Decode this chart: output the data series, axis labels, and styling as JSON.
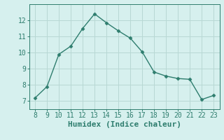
{
  "x": [
    8,
    9,
    10,
    11,
    12,
    13,
    14,
    15,
    16,
    17,
    18,
    19,
    20,
    21,
    22,
    23
  ],
  "y": [
    7.2,
    7.9,
    9.9,
    10.4,
    11.5,
    12.4,
    11.85,
    11.35,
    10.9,
    10.05,
    8.8,
    8.55,
    8.4,
    8.35,
    7.1,
    7.35
  ],
  "xlabel": "Humidex (Indice chaleur)",
  "xlim": [
    7.5,
    23.5
  ],
  "ylim": [
    6.5,
    13.0
  ],
  "xticks": [
    8,
    9,
    10,
    11,
    12,
    13,
    14,
    15,
    16,
    17,
    18,
    19,
    20,
    21,
    22,
    23
  ],
  "yticks": [
    7,
    8,
    9,
    10,
    11,
    12
  ],
  "line_color": "#2e7d6e",
  "marker": "D",
  "marker_size": 2.5,
  "bg_color": "#d6f0ee",
  "grid_color": "#b8d8d4",
  "tick_fontsize": 7,
  "xlabel_fontsize": 8
}
